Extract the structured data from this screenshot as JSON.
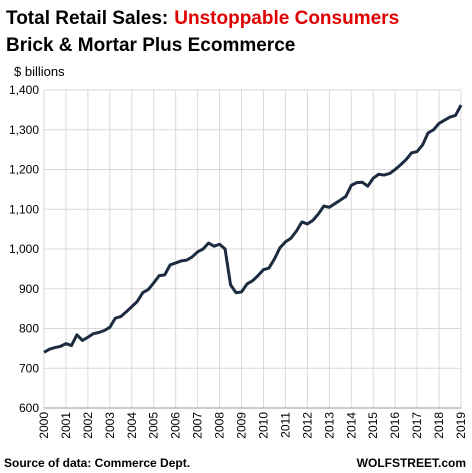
{
  "chart_data": {
    "type": "line",
    "title": "Total Retail Sales:",
    "title_emphasis": "Unstoppable Consumers",
    "subtitle": "Brick & Mortar Plus Ecommerce",
    "y_label": "$ billions",
    "source": "Source of data: Commerce Dept.",
    "credit": "WOLFSTREET.com",
    "title_color": "#000000",
    "emphasis_color": "#e00000",
    "grid": true,
    "x": [
      2000,
      2000.25,
      2000.5,
      2000.75,
      2001,
      2001.25,
      2001.5,
      2001.75,
      2002,
      2002.25,
      2002.5,
      2002.75,
      2003,
      2003.25,
      2003.5,
      2003.75,
      2004,
      2004.25,
      2004.5,
      2004.75,
      2005,
      2005.25,
      2005.5,
      2005.75,
      2006,
      2006.25,
      2006.5,
      2006.75,
      2007,
      2007.25,
      2007.5,
      2007.75,
      2008,
      2008.25,
      2008.5,
      2008.75,
      2009,
      2009.25,
      2009.5,
      2009.75,
      2010,
      2010.25,
      2010.5,
      2010.75,
      2011,
      2011.25,
      2011.5,
      2011.75,
      2012,
      2012.25,
      2012.5,
      2012.75,
      2013,
      2013.25,
      2013.5,
      2013.75,
      2014,
      2014.25,
      2014.5,
      2014.75,
      2015,
      2015.25,
      2015.5,
      2015.75,
      2016,
      2016.25,
      2016.5,
      2016.75,
      2017,
      2017.25,
      2017.5,
      2017.75,
      2018,
      2018.25,
      2018.5,
      2018.75,
      2019
    ],
    "series": [
      {
        "color": "#1c2b3f",
        "values": [
          740,
          748,
          752,
          755,
          762,
          757,
          784,
          770,
          778,
          787,
          790,
          795,
          803,
          826,
          830,
          842,
          855,
          868,
          890,
          898,
          915,
          933,
          935,
          960,
          965,
          970,
          972,
          980,
          993,
          1000,
          1015,
          1007,
          1012,
          1000,
          910,
          890,
          892,
          912,
          920,
          933,
          948,
          952,
          975,
          1003,
          1018,
          1027,
          1045,
          1068,
          1063,
          1072,
          1088,
          1108,
          1105,
          1114,
          1123,
          1132,
          1160,
          1167,
          1168,
          1158,
          1178,
          1188,
          1186,
          1190,
          1200,
          1212,
          1225,
          1242,
          1245,
          1262,
          1292,
          1300,
          1316,
          1324,
          1332,
          1336,
          1362
        ]
      }
    ],
    "xlim": [
      2000,
      2019
    ],
    "xticks": [
      2000,
      2001,
      2002,
      2003,
      2004,
      2005,
      2006,
      2007,
      2008,
      2009,
      2010,
      2011,
      2012,
      2013,
      2014,
      2015,
      2016,
      2017,
      2018,
      2019
    ],
    "ylim": [
      600,
      1400
    ],
    "yticks": [
      600,
      700,
      800,
      900,
      {
        "value": 1000,
        "label": "1,000"
      },
      {
        "value": 1100,
        "label": "1,100"
      },
      {
        "value": 1200,
        "label": "1,200"
      },
      {
        "value": 1300,
        "label": "1,300"
      },
      {
        "value": 1400,
        "label": "1,400"
      }
    ]
  }
}
